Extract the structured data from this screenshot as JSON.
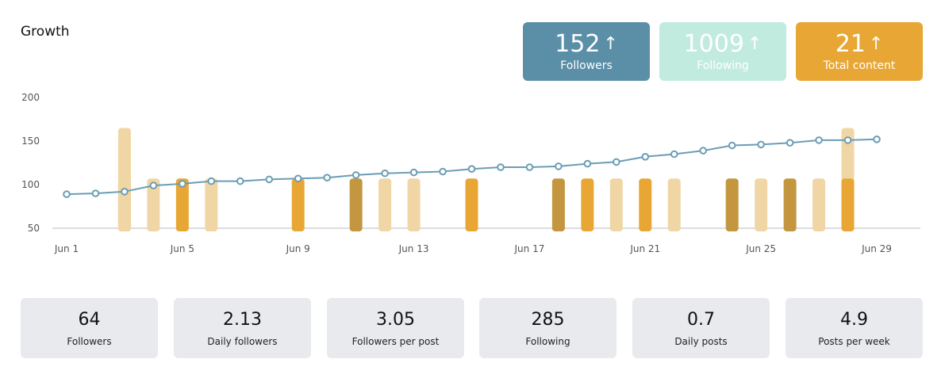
{
  "title": "Growth",
  "kpis": {
    "followers": {
      "value": "152",
      "label": "Followers",
      "arrow": "arrow-up-icon"
    },
    "following": {
      "value": "1009",
      "label": "Following",
      "arrow": "arrow-up-icon"
    },
    "content": {
      "value": "21",
      "label": "Total content",
      "arrow": "arrow-up-icon"
    }
  },
  "colors": {
    "line": "#6b9db5",
    "bar_dark": "#c4963f",
    "bar_mid": "#e8a735",
    "bar_light": "#f0d6a5",
    "kpi_followers": "#5b8fa8",
    "kpi_following": "#c2ebe0",
    "kpi_content": "#e8a735"
  },
  "chart_data": {
    "type": "line",
    "ylim": [
      50,
      200
    ],
    "yticks": [
      50,
      100,
      150,
      200
    ],
    "xticks": [
      {
        "day": 1,
        "label": "Jun 1"
      },
      {
        "day": 5,
        "label": "Jun 5"
      },
      {
        "day": 9,
        "label": "Jun 9"
      },
      {
        "day": 13,
        "label": "Jun 13"
      },
      {
        "day": 17,
        "label": "Jun 17"
      },
      {
        "day": 21,
        "label": "Jun 21"
      },
      {
        "day": 25,
        "label": "Jun 25"
      },
      {
        "day": 29,
        "label": "Jun 29"
      }
    ],
    "line": {
      "x": [
        1,
        2,
        3,
        4,
        5,
        6,
        7,
        8,
        9,
        10,
        11,
        12,
        13,
        14,
        15,
        16,
        17,
        18,
        19,
        20,
        21,
        22,
        23,
        24,
        25,
        26,
        27,
        28,
        29
      ],
      "y": [
        89,
        90,
        92,
        99,
        101,
        104,
        104,
        106,
        107,
        108,
        111,
        113,
        114,
        115,
        118,
        120,
        120,
        121,
        124,
        126,
        132,
        135,
        139,
        145,
        146,
        148,
        151,
        151,
        152
      ]
    },
    "bars": [
      {
        "day": 3,
        "value": 107,
        "shade": "dark"
      },
      {
        "day": 3,
        "value": 165,
        "shade": "light"
      },
      {
        "day": 4,
        "value": 107,
        "shade": "light"
      },
      {
        "day": 5,
        "value": 107,
        "shade": "mid"
      },
      {
        "day": 6,
        "value": 107,
        "shade": "light"
      },
      {
        "day": 9,
        "value": 107,
        "shade": "mid"
      },
      {
        "day": 11,
        "value": 107,
        "shade": "dark"
      },
      {
        "day": 12,
        "value": 107,
        "shade": "light"
      },
      {
        "day": 13,
        "value": 107,
        "shade": "light"
      },
      {
        "day": 15,
        "value": 107,
        "shade": "mid"
      },
      {
        "day": 18,
        "value": 107,
        "shade": "dark"
      },
      {
        "day": 19,
        "value": 107,
        "shade": "mid"
      },
      {
        "day": 20,
        "value": 107,
        "shade": "light"
      },
      {
        "day": 21,
        "value": 107,
        "shade": "mid"
      },
      {
        "day": 22,
        "value": 107,
        "shade": "light"
      },
      {
        "day": 24,
        "value": 107,
        "shade": "dark"
      },
      {
        "day": 25,
        "value": 107,
        "shade": "light"
      },
      {
        "day": 26,
        "value": 107,
        "shade": "dark"
      },
      {
        "day": 27,
        "value": 107,
        "shade": "light"
      },
      {
        "day": 28,
        "value": 165,
        "shade": "light"
      },
      {
        "day": 28,
        "value": 107,
        "shade": "mid"
      }
    ]
  },
  "stats": [
    {
      "value": "64",
      "label": "Followers"
    },
    {
      "value": "2.13",
      "label": "Daily followers"
    },
    {
      "value": "3.05",
      "label": "Followers per post"
    },
    {
      "value": "285",
      "label": "Following"
    },
    {
      "value": "0.7",
      "label": "Daily posts"
    },
    {
      "value": "4.9",
      "label": "Posts per week"
    }
  ]
}
